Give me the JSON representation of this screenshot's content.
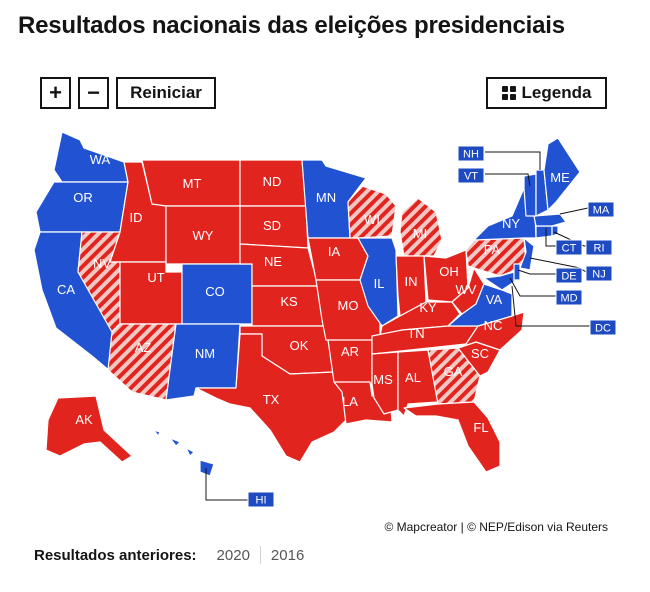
{
  "title": "Resultados nacionais das eleições presidenciais",
  "controls": {
    "zoom_in": "+",
    "zoom_out": "−",
    "reset": "Reiniciar",
    "legend": "Legenda"
  },
  "colors": {
    "dem": "#2152d1",
    "rep": "#e2241f",
    "stripe": "#f2c8c5",
    "label_bg": "#1f4bc2",
    "label_text": "#ffffff"
  },
  "state_labels": [
    {
      "id": "WA",
      "text": "WA",
      "party": "D"
    },
    {
      "id": "OR",
      "text": "OR",
      "party": "D"
    },
    {
      "id": "CA",
      "text": "CA",
      "party": "D"
    },
    {
      "id": "NV",
      "text": "NV",
      "party": "pending"
    },
    {
      "id": "ID",
      "text": "ID",
      "party": "R"
    },
    {
      "id": "MT",
      "text": "MT",
      "party": "R"
    },
    {
      "id": "WY",
      "text": "WY",
      "party": "R"
    },
    {
      "id": "UT",
      "text": "UT",
      "party": "R"
    },
    {
      "id": "AZ",
      "text": "AZ",
      "party": "pending"
    },
    {
      "id": "CO",
      "text": "CO",
      "party": "D"
    },
    {
      "id": "NM",
      "text": "NM",
      "party": "D"
    },
    {
      "id": "ND",
      "text": "ND",
      "party": "R"
    },
    {
      "id": "SD",
      "text": "SD",
      "party": "R"
    },
    {
      "id": "NE",
      "text": "NE",
      "party": "R"
    },
    {
      "id": "KS",
      "text": "KS",
      "party": "R"
    },
    {
      "id": "OK",
      "text": "OK",
      "party": "R"
    },
    {
      "id": "TX",
      "text": "TX",
      "party": "R"
    },
    {
      "id": "MN",
      "text": "MN",
      "party": "D"
    },
    {
      "id": "IA",
      "text": "IA",
      "party": "R"
    },
    {
      "id": "MO",
      "text": "MO",
      "party": "R"
    },
    {
      "id": "AR",
      "text": "AR",
      "party": "R"
    },
    {
      "id": "LA",
      "text": "LA",
      "party": "R"
    },
    {
      "id": "WI",
      "text": "WI",
      "party": "pending"
    },
    {
      "id": "IL",
      "text": "IL",
      "party": "D"
    },
    {
      "id": "MI",
      "text": "MI",
      "party": "pending"
    },
    {
      "id": "IN",
      "text": "IN",
      "party": "R"
    },
    {
      "id": "OH",
      "text": "OH",
      "party": "R"
    },
    {
      "id": "KY",
      "text": "KY",
      "party": "R"
    },
    {
      "id": "TN",
      "text": "TN",
      "party": "R"
    },
    {
      "id": "MS",
      "text": "MS",
      "party": "R"
    },
    {
      "id": "AL",
      "text": "AL",
      "party": "R"
    },
    {
      "id": "GA",
      "text": "GA",
      "party": "pending"
    },
    {
      "id": "FL",
      "text": "FL",
      "party": "R"
    },
    {
      "id": "SC",
      "text": "SC",
      "party": "R"
    },
    {
      "id": "NC",
      "text": "NC",
      "party": "R"
    },
    {
      "id": "WV",
      "text": "WV",
      "party": "R"
    },
    {
      "id": "VA",
      "text": "VA",
      "party": "D"
    },
    {
      "id": "PA",
      "text": "PA",
      "party": "pending"
    },
    {
      "id": "NY",
      "text": "NY",
      "party": "D"
    },
    {
      "id": "ME",
      "text": "ME",
      "party": "D"
    },
    {
      "id": "AK",
      "text": "AK",
      "party": "R"
    }
  ],
  "callouts": [
    {
      "id": "NH",
      "text": "NH"
    },
    {
      "id": "VT",
      "text": "VT"
    },
    {
      "id": "MA",
      "text": "MA"
    },
    {
      "id": "CT",
      "text": "CT"
    },
    {
      "id": "RI",
      "text": "RI"
    },
    {
      "id": "DE",
      "text": "DE"
    },
    {
      "id": "NJ",
      "text": "NJ"
    },
    {
      "id": "MD",
      "text": "MD"
    },
    {
      "id": "DC",
      "text": "DC"
    },
    {
      "id": "HI",
      "text": "HI"
    }
  ],
  "attribution": "© Mapcreator | © NEP/Edison via Reuters",
  "previous": {
    "label": "Resultados anteriores:",
    "years": [
      "2020",
      "2016"
    ]
  }
}
